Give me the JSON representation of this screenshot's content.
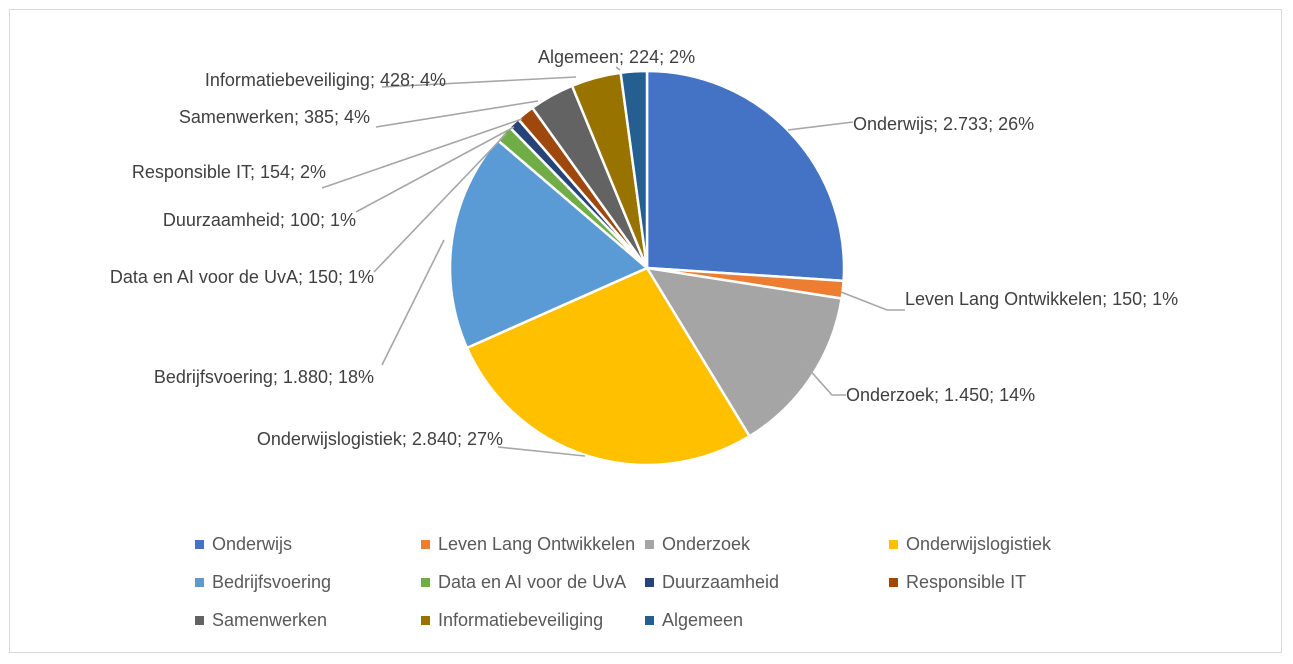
{
  "chart_data": {
    "type": "pie",
    "title": "",
    "legend_position": "bottom",
    "slices": [
      {
        "name": "Onderwijs",
        "value": 2733,
        "percent": 26,
        "label": "Onderwijs; 2.733; 26%",
        "color": "#4472C4"
      },
      {
        "name": "Leven Lang Ontwikkelen",
        "value": 150,
        "percent": 1,
        "label": "Leven Lang Ontwikkelen; 150; 1%",
        "color": "#ED7D31"
      },
      {
        "name": "Onderzoek",
        "value": 1450,
        "percent": 14,
        "label": "Onderzoek; 1.450; 14%",
        "color": "#A5A5A5"
      },
      {
        "name": "Onderwijslogistiek",
        "value": 2840,
        "percent": 27,
        "label": "Onderwijslogistiek; 2.840; 27%",
        "color": "#FFC000"
      },
      {
        "name": "Bedrijfsvoering",
        "value": 1880,
        "percent": 18,
        "label": "Bedrijfsvoering; 1.880; 18%",
        "color": "#5B9BD5"
      },
      {
        "name": "Data en AI voor de UvA",
        "value": 150,
        "percent": 1,
        "label": "Data en AI voor de UvA; 150; 1%",
        "color": "#70AD47"
      },
      {
        "name": "Duurzaamheid",
        "value": 100,
        "percent": 1,
        "label": "Duurzaamheid; 100; 1%",
        "color": "#264478"
      },
      {
        "name": "Responsible IT",
        "value": 154,
        "percent": 2,
        "label": "Responsible IT; 154; 2%",
        "color": "#9E480E"
      },
      {
        "name": "Samenwerken",
        "value": 385,
        "percent": 4,
        "label": "Samenwerken; 385; 4%",
        "color": "#636363"
      },
      {
        "name": "Informatiebeveiliging",
        "value": 428,
        "percent": 4,
        "label": "Informatiebeveiliging; 428; 4%",
        "color": "#997300"
      },
      {
        "name": "Algemeen",
        "value": 224,
        "percent": 2,
        "label": "Algemeen; 224; 2%",
        "color": "#255E91"
      }
    ]
  }
}
